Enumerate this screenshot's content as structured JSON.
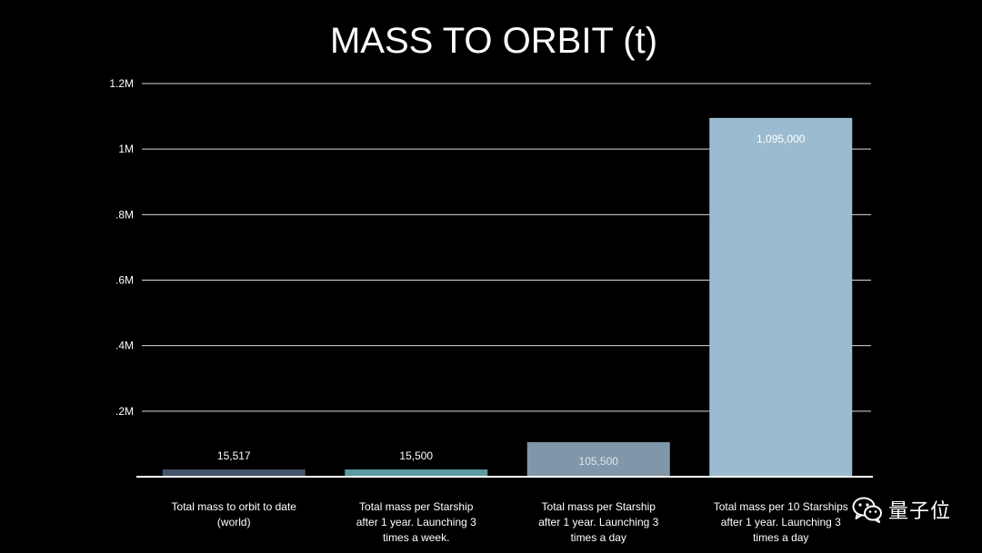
{
  "chart_data": {
    "type": "bar",
    "title": "MASS TO ORBIT (t)",
    "xlabel": "",
    "ylabel": "",
    "categories": [
      [
        "Total mass to orbit to date",
        "(world)"
      ],
      [
        "Total mass per Starship",
        "after 1 year. Launching 3",
        "times a week."
      ],
      [
        "Total mass per Starship",
        "after 1 year. Launching 3",
        "times a day"
      ],
      [
        "Total mass per 10 Starships",
        "after 1 year. Launching 3",
        "times a day"
      ]
    ],
    "values": [
      15517,
      15500,
      105500,
      1095000
    ],
    "data_labels": [
      "15,517",
      "15,500",
      "105,500",
      "1,095,000"
    ],
    "bar_colors": [
      "#44546a",
      "#5b9aa0",
      "#7f97a8",
      "#9bbcd0"
    ],
    "data_label_colors": [
      "#ffffff",
      "#ffffff",
      "#dce7ef",
      "#ffffff"
    ],
    "ylim": [
      0,
      1200000
    ],
    "yticks": [
      {
        "value": 200000,
        "label": ".2M"
      },
      {
        "value": 400000,
        "label": ".4M"
      },
      {
        "value": 600000,
        "label": ".6M"
      },
      {
        "value": 800000,
        "label": ".8M"
      },
      {
        "value": 1000000,
        "label": "1M"
      },
      {
        "value": 1200000,
        "label": "1.2M"
      }
    ],
    "grid": true,
    "legend": "none",
    "background_color": "#000000",
    "grid_color": "#ffffff",
    "axis_color": "#ffffff"
  },
  "watermark": {
    "text": "量子位",
    "icon": "wechat-icon"
  }
}
